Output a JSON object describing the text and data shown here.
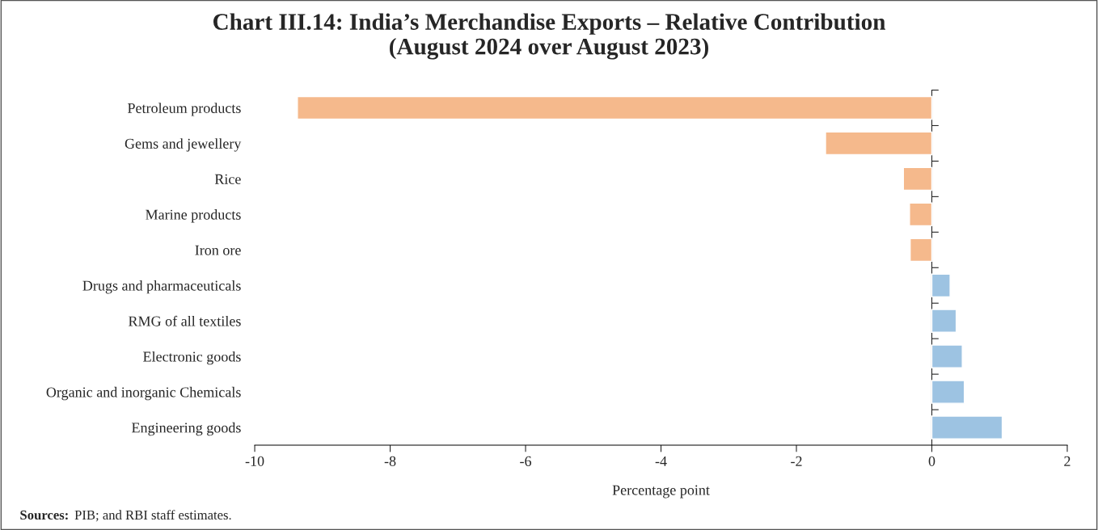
{
  "chart_data": {
    "type": "bar",
    "orientation": "horizontal",
    "title": "Chart III.14: India’s Merchandise Exports – Relative Contribution\n(August 2024 over August 2023)",
    "categories": [
      "Petroleum products",
      "Gems and jewellery",
      "Rice",
      "Marine products",
      "Iron ore",
      "Drugs and pharmaceuticals",
      "RMG of all textiles",
      "Electronic goods",
      "Organic and inorganic Chemicals",
      "Engineering goods"
    ],
    "values": [
      -9.37,
      -1.57,
      -0.42,
      -0.33,
      -0.32,
      0.27,
      0.36,
      0.45,
      0.48,
      1.04
    ],
    "colors": [
      "#f5b98c",
      "#f5b98c",
      "#f5b98c",
      "#f5b98c",
      "#f5b98c",
      "#9dc3e2",
      "#9dc3e2",
      "#9dc3e2",
      "#9dc3e2",
      "#9dc3e2"
    ],
    "xlim": [
      -10,
      2
    ],
    "xticks": [
      -10,
      -8,
      -6,
      -4,
      -2,
      0,
      2
    ],
    "xlabel": "Percentage point",
    "annotations": [
      "Sources: PIB; and RBI staff estimates."
    ],
    "legend": false
  }
}
